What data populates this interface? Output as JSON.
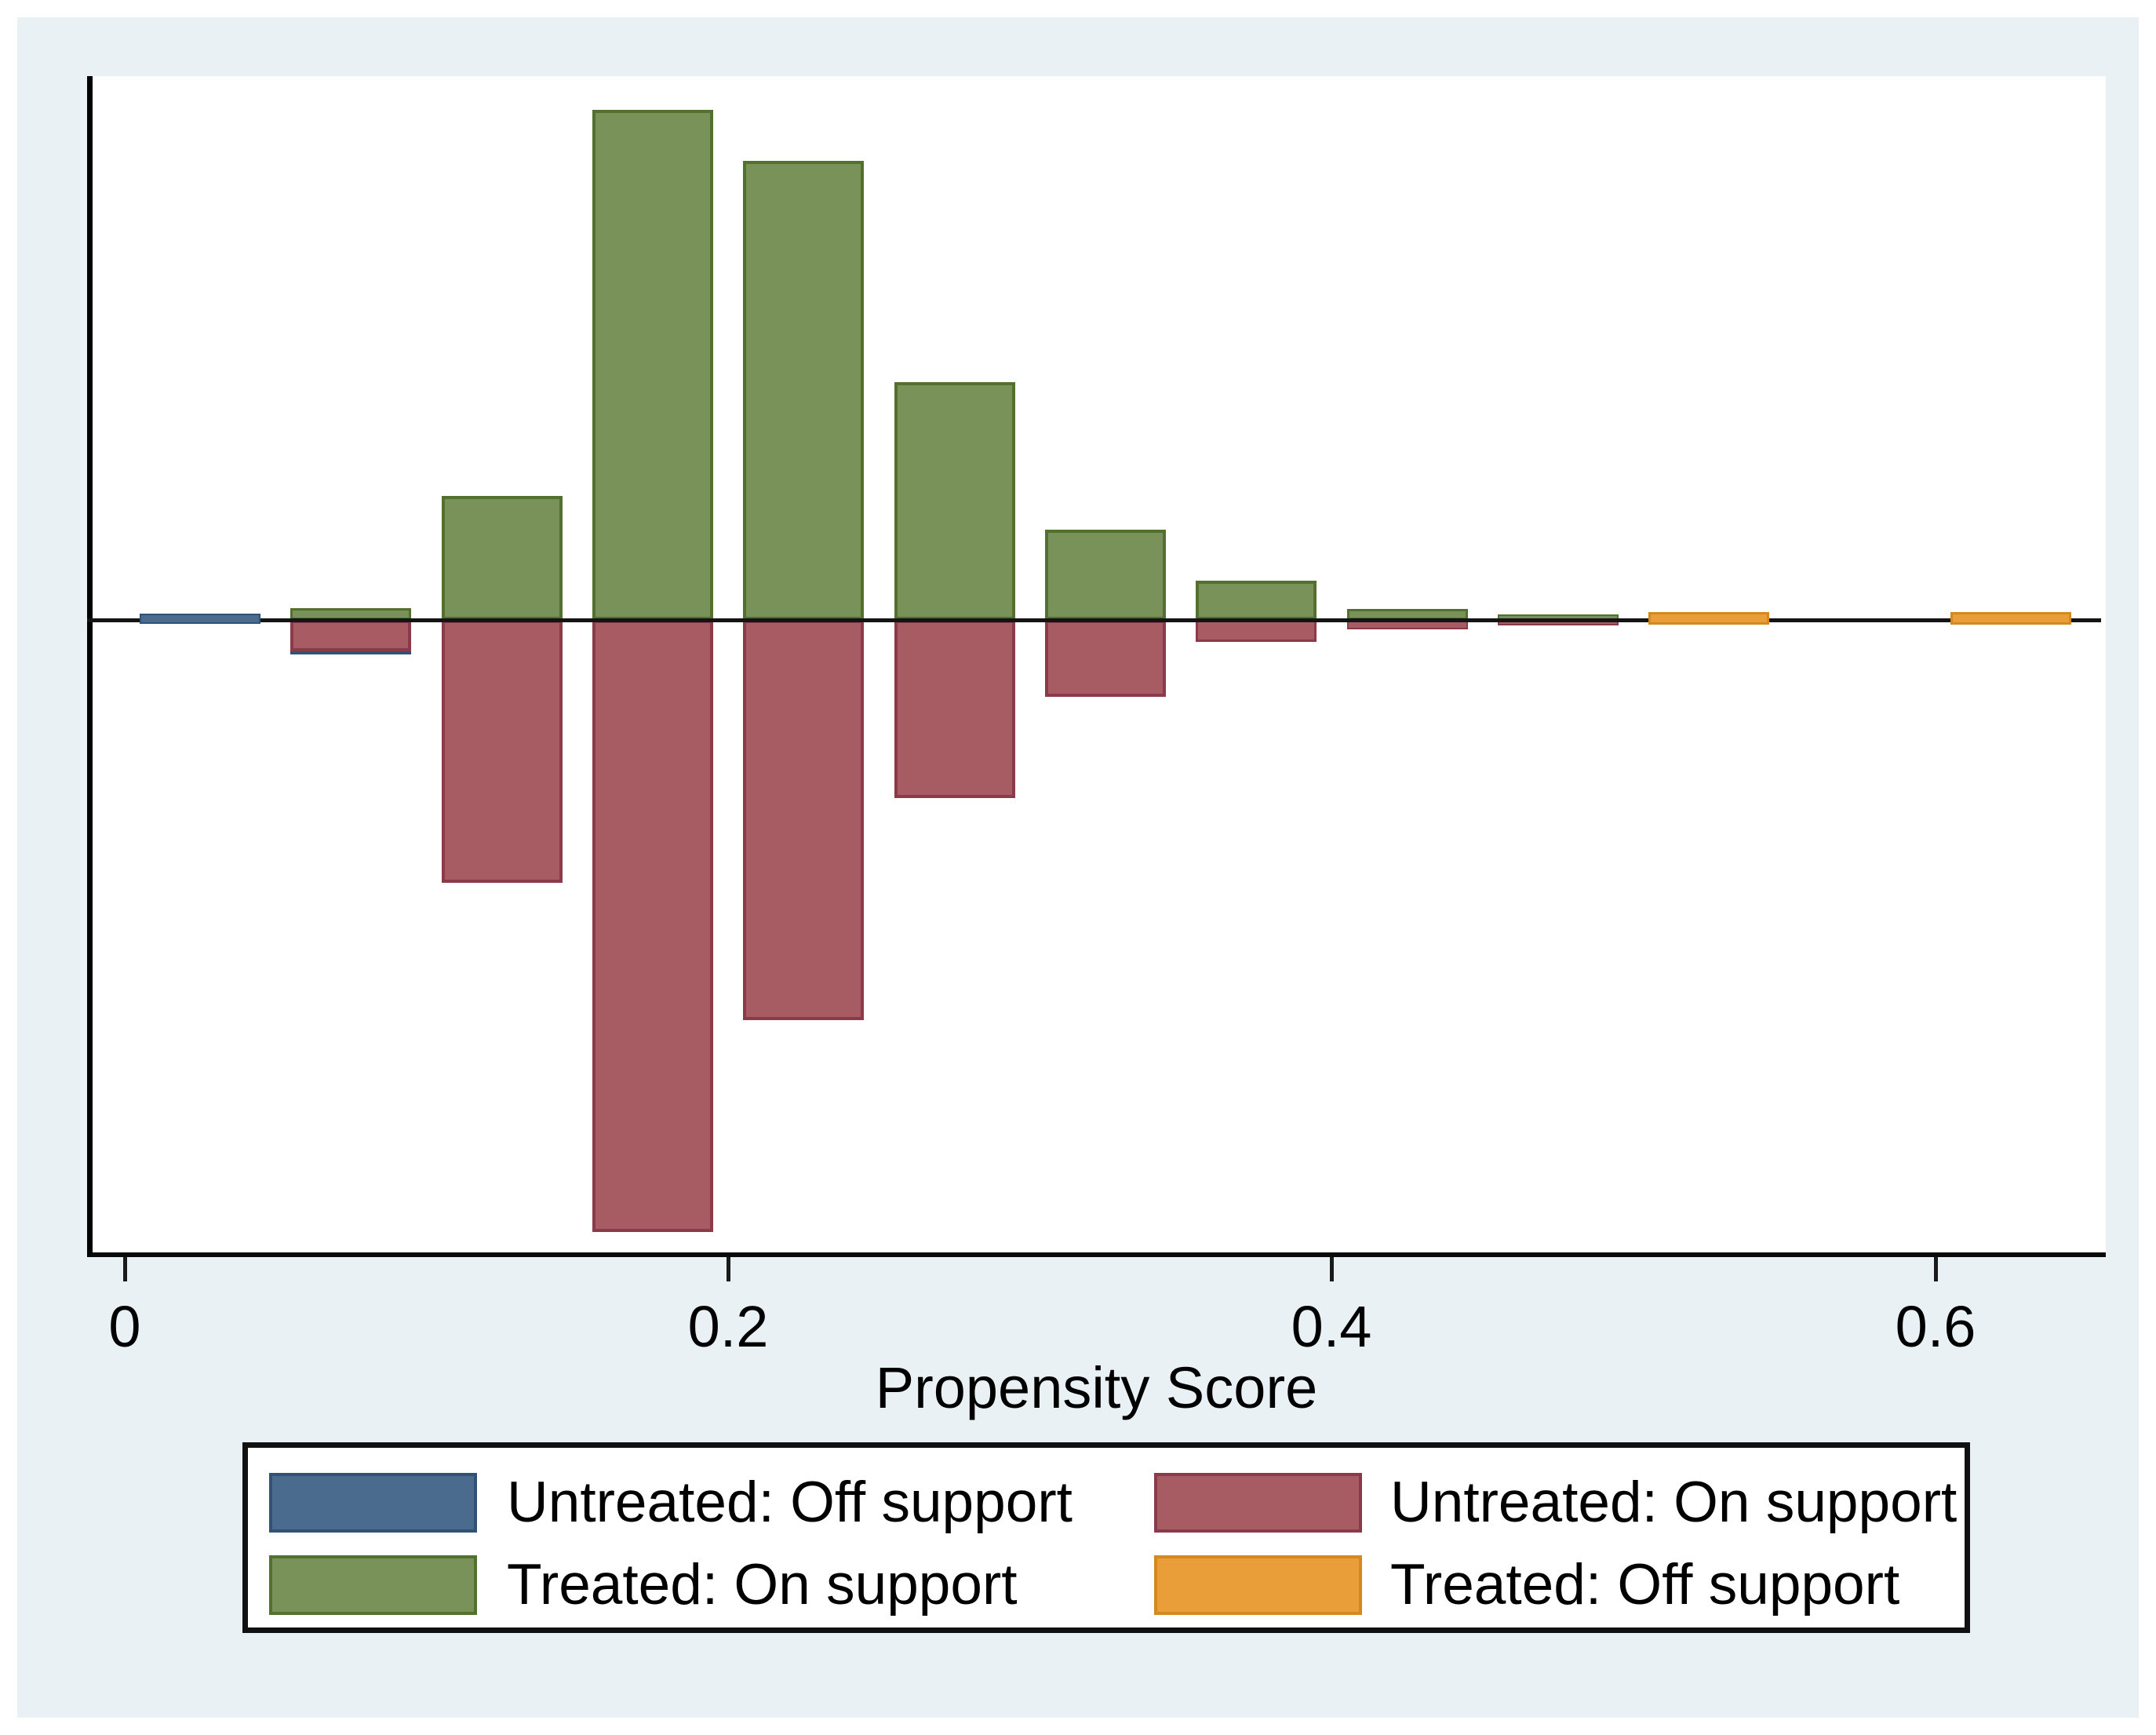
{
  "figure": {
    "xlabel": "Propensity Score",
    "x_tick_labels": [
      "0",
      "0.2",
      "0.4",
      "0.6"
    ],
    "legend": [
      {
        "label": "Untreated: Off support",
        "color_key": "untreated_off"
      },
      {
        "label": "Untreated: On support",
        "color_key": "untreated_on"
      },
      {
        "label": "Treated: On support",
        "color_key": "treated_on"
      },
      {
        "label": "Treated: Off support",
        "color_key": "treated_off"
      }
    ]
  },
  "colors": {
    "untreated_off": {
      "fill": "#4a6b8e",
      "edge": "#2f5275"
    },
    "untreated_on": {
      "fill": "#a65c62",
      "edge": "#8a3a48"
    },
    "treated_on": {
      "fill": "#79925a",
      "edge": "#53702e"
    },
    "treated_off": {
      "fill": "#e99e39",
      "edge": "#d4881e"
    },
    "figure_bg": "#eaf1f4",
    "plot_bg": "#ffffff",
    "axis": "#000000"
  },
  "chart_data": {
    "type": "bar",
    "title": "",
    "xlabel": "Propensity Score",
    "ylabel": "",
    "x_ticks": [
      0,
      0.2,
      0.4,
      0.6
    ],
    "xlim": [
      -0.012,
      0.657
    ],
    "bin_width": 0.05,
    "orientation": "mirrored histogram: treated bars above zero line, untreated bars below",
    "y_units": "unlabeled frequency, relative units (1.0 = tallest treated bar)",
    "grid": false,
    "legend_position": "bottom",
    "series_keys": [
      "untreated_off",
      "untreated_on",
      "treated_on",
      "treated_off"
    ],
    "bins": [
      {
        "center": 0.025,
        "untreated_off": 0.018,
        "untreated_on": 0,
        "treated_on": 0,
        "treated_off": 0
      },
      {
        "center": 0.075,
        "untreated_off": 0.068,
        "untreated_on": 0.062,
        "treated_on": 0.023,
        "treated_off": 0
      },
      {
        "center": 0.125,
        "untreated_off": 0,
        "untreated_on": 0.515,
        "treated_on": 0.243,
        "treated_off": 0
      },
      {
        "center": 0.175,
        "untreated_off": 0,
        "untreated_on": 1.2,
        "treated_on": 1.0,
        "treated_off": 0
      },
      {
        "center": 0.225,
        "untreated_off": 0,
        "untreated_on": 0.785,
        "treated_on": 0.9,
        "treated_off": 0
      },
      {
        "center": 0.275,
        "untreated_off": 0,
        "untreated_on": 0.349,
        "treated_on": 0.466,
        "treated_off": 0
      },
      {
        "center": 0.325,
        "untreated_off": 0,
        "untreated_on": 0.151,
        "treated_on": 0.177,
        "treated_off": 0
      },
      {
        "center": 0.375,
        "untreated_off": 0,
        "untreated_on": 0.043,
        "treated_on": 0.077,
        "treated_off": 0
      },
      {
        "center": 0.425,
        "untreated_off": 0,
        "untreated_on": 0.018,
        "treated_on": 0.022,
        "treated_off": 0
      },
      {
        "center": 0.475,
        "untreated_off": 0,
        "untreated_on": 0.011,
        "treated_on": 0.011,
        "treated_off": 0
      },
      {
        "center": 0.525,
        "untreated_off": 0,
        "untreated_on": 0,
        "treated_on": 0,
        "treated_off": 0.022
      },
      {
        "center": 0.625,
        "untreated_off": 0,
        "untreated_on": 0,
        "treated_on": 0,
        "treated_off": 0.022
      }
    ]
  }
}
